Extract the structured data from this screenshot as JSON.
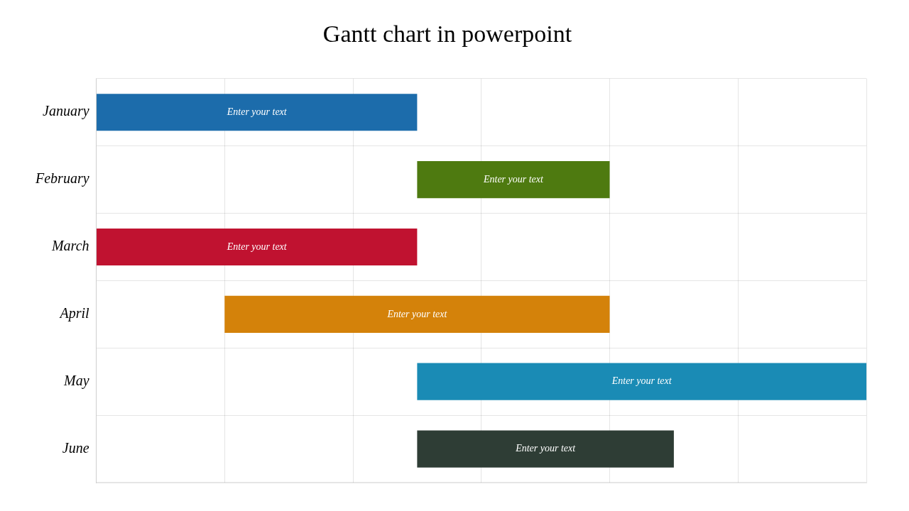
{
  "chart_data": {
    "type": "gantt",
    "title": "Gantt chart in powerpoint",
    "orientation": "horizontal",
    "categories": [
      "January",
      "February",
      "March",
      "April",
      "May",
      "June"
    ],
    "start": [
      0.0,
      2.5,
      0.0,
      1.0,
      2.5,
      2.5
    ],
    "values": [
      2.5,
      1.5,
      2.5,
      3.0,
      3.5,
      2.0
    ],
    "colors": [
      "#1C6CAB",
      "#4E7A10",
      "#C01230",
      "#D4820A",
      "#1A8BB5",
      "#2E3D35"
    ],
    "annotations": [
      "Enter your text",
      "Enter your text",
      "Enter your text",
      "Enter your text",
      "Enter your text",
      "Enter your text"
    ],
    "xlim": [
      0,
      6
    ],
    "xticks": [
      0,
      1,
      2,
      3,
      4,
      5,
      6
    ],
    "grid": true,
    "tick_labels": "y"
  }
}
